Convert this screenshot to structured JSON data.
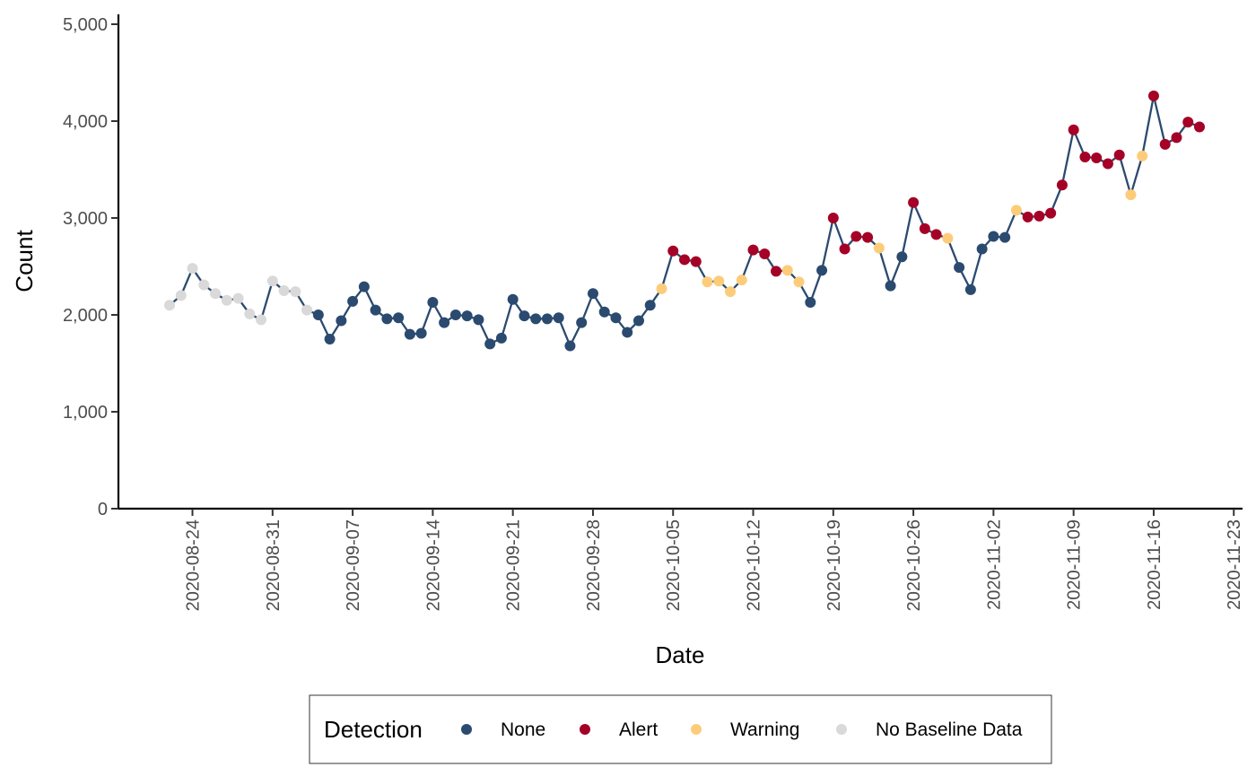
{
  "chart_data": {
    "type": "line",
    "title": "",
    "xlabel": "Date",
    "ylabel": "Count",
    "ylim": [
      0,
      5000
    ],
    "xlim": [
      "2020-08-18",
      "2020-11-24"
    ],
    "grid": false,
    "legend_position": "bottom",
    "line_color": "#2b4a6f",
    "y_ticks": [
      0,
      1000,
      2000,
      3000,
      4000,
      5000
    ],
    "y_tick_labels": [
      "0",
      "1,000",
      "2,000",
      "3,000",
      "4,000",
      "5,000"
    ],
    "x_ticks": [
      "2020-08-24",
      "2020-08-31",
      "2020-09-07",
      "2020-09-14",
      "2020-09-21",
      "2020-09-28",
      "2020-10-05",
      "2020-10-12",
      "2020-10-19",
      "2020-10-26",
      "2020-11-02",
      "2020-11-09",
      "2020-11-16",
      "2020-11-23"
    ],
    "legend": {
      "title": "Detection",
      "entries": [
        {
          "key": "none",
          "label": "None",
          "color": "#2b4a6f"
        },
        {
          "key": "alert",
          "label": "Alert",
          "color": "#a50026"
        },
        {
          "key": "warning",
          "label": "Warning",
          "color": "#fdcc7a"
        },
        {
          "key": "nobaseline",
          "label": "No Baseline Data",
          "color": "#d9d9d9"
        }
      ]
    },
    "dates": [
      "2020-08-22",
      "2020-08-23",
      "2020-08-24",
      "2020-08-25",
      "2020-08-26",
      "2020-08-27",
      "2020-08-28",
      "2020-08-29",
      "2020-08-30",
      "2020-08-31",
      "2020-09-01",
      "2020-09-02",
      "2020-09-03",
      "2020-09-04",
      "2020-09-05",
      "2020-09-06",
      "2020-09-07",
      "2020-09-08",
      "2020-09-09",
      "2020-09-10",
      "2020-09-11",
      "2020-09-12",
      "2020-09-13",
      "2020-09-14",
      "2020-09-15",
      "2020-09-16",
      "2020-09-17",
      "2020-09-18",
      "2020-09-19",
      "2020-09-20",
      "2020-09-21",
      "2020-09-22",
      "2020-09-23",
      "2020-09-24",
      "2020-09-25",
      "2020-09-26",
      "2020-09-27",
      "2020-09-28",
      "2020-09-29",
      "2020-09-30",
      "2020-10-01",
      "2020-10-02",
      "2020-10-03",
      "2020-10-04",
      "2020-10-05",
      "2020-10-06",
      "2020-10-07",
      "2020-10-08",
      "2020-10-09",
      "2020-10-10",
      "2020-10-11",
      "2020-10-12",
      "2020-10-13",
      "2020-10-14",
      "2020-10-15",
      "2020-10-16",
      "2020-10-17",
      "2020-10-18",
      "2020-10-19",
      "2020-10-20",
      "2020-10-21",
      "2020-10-22",
      "2020-10-23",
      "2020-10-24",
      "2020-10-25",
      "2020-10-26",
      "2020-10-27",
      "2020-10-28",
      "2020-10-29",
      "2020-10-30",
      "2020-10-31",
      "2020-11-01",
      "2020-11-02",
      "2020-11-03",
      "2020-11-04",
      "2020-11-05",
      "2020-11-06",
      "2020-11-07",
      "2020-11-08",
      "2020-11-09",
      "2020-11-10",
      "2020-11-11",
      "2020-11-12",
      "2020-11-13",
      "2020-11-14",
      "2020-11-15",
      "2020-11-16",
      "2020-11-17",
      "2020-11-18",
      "2020-11-19",
      "2020-11-20"
    ],
    "values": [
      2100,
      2200,
      2480,
      2310,
      2220,
      2150,
      2170,
      2010,
      1950,
      2350,
      2250,
      2240,
      2050,
      2000,
      1750,
      1940,
      2140,
      2290,
      2050,
      1960,
      1970,
      1800,
      1810,
      2130,
      1920,
      2000,
      1990,
      1950,
      1700,
      1760,
      2160,
      1990,
      1960,
      1960,
      1970,
      1680,
      1920,
      2220,
      2030,
      1970,
      1820,
      1940,
      2100,
      2270,
      2660,
      2570,
      2550,
      2340,
      2350,
      2240,
      2360,
      2670,
      2630,
      2450,
      2460,
      2340,
      2130,
      2460,
      3000,
      2680,
      2810,
      2800,
      2690,
      2300,
      2600,
      3160,
      2890,
      2830,
      2790,
      2490,
      2260,
      2680,
      2810,
      2800,
      3080,
      3010,
      3020,
      3050,
      3340,
      3910,
      3630,
      3620,
      3560,
      3650,
      3240,
      3640,
      4260,
      3760,
      3830,
      3990,
      3940
    ],
    "detection": [
      "nobaseline",
      "nobaseline",
      "nobaseline",
      "nobaseline",
      "nobaseline",
      "nobaseline",
      "nobaseline",
      "nobaseline",
      "nobaseline",
      "nobaseline",
      "nobaseline",
      "nobaseline",
      "nobaseline",
      "none",
      "none",
      "none",
      "none",
      "none",
      "none",
      "none",
      "none",
      "none",
      "none",
      "none",
      "none",
      "none",
      "none",
      "none",
      "none",
      "none",
      "none",
      "none",
      "none",
      "none",
      "none",
      "none",
      "none",
      "none",
      "none",
      "none",
      "none",
      "none",
      "none",
      "warning",
      "alert",
      "alert",
      "alert",
      "warning",
      "warning",
      "warning",
      "warning",
      "alert",
      "alert",
      "alert",
      "warning",
      "warning",
      "none",
      "none",
      "alert",
      "alert",
      "alert",
      "alert",
      "warning",
      "none",
      "none",
      "alert",
      "alert",
      "alert",
      "warning",
      "none",
      "none",
      "none",
      "none",
      "none",
      "warning",
      "alert",
      "alert",
      "alert",
      "alert",
      "alert",
      "alert",
      "alert",
      "alert",
      "alert",
      "warning",
      "warning",
      "alert",
      "alert",
      "alert",
      "alert",
      "alert"
    ]
  }
}
